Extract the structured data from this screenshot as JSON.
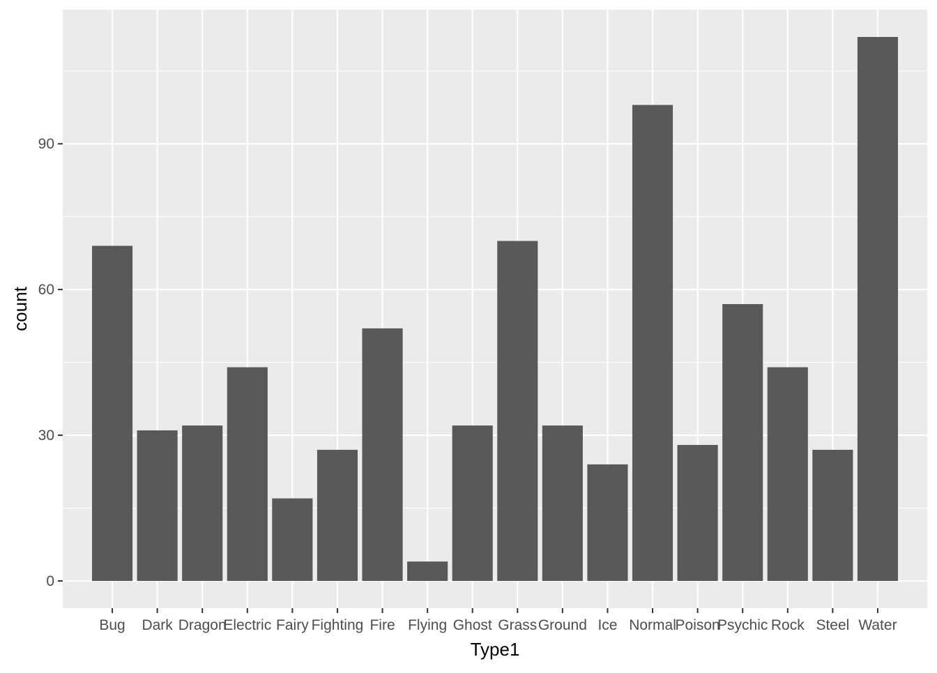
{
  "chart_data": {
    "type": "bar",
    "title": "",
    "xlabel": "Type1",
    "ylabel": "count",
    "categories": [
      "Bug",
      "Dark",
      "Dragon",
      "Electric",
      "Fairy",
      "Fighting",
      "Fire",
      "Flying",
      "Ghost",
      "Grass",
      "Ground",
      "Ice",
      "Normal",
      "Poison",
      "Psychic",
      "Rock",
      "Steel",
      "Water"
    ],
    "values": [
      69,
      31,
      32,
      44,
      17,
      27,
      52,
      4,
      32,
      70,
      32,
      24,
      98,
      28,
      57,
      44,
      27,
      112
    ],
    "ylim": [
      -5.6,
      117.6
    ],
    "yticks": [
      0,
      30,
      60,
      90
    ],
    "grid": true,
    "legend": "none",
    "colors": {
      "panel": "#EBEBEB",
      "gridline": "#FFFFFF",
      "bar": "#595959",
      "tick_label": "#4D4D4D",
      "axis_title": "#000000",
      "tick_mark": "#333333"
    }
  }
}
